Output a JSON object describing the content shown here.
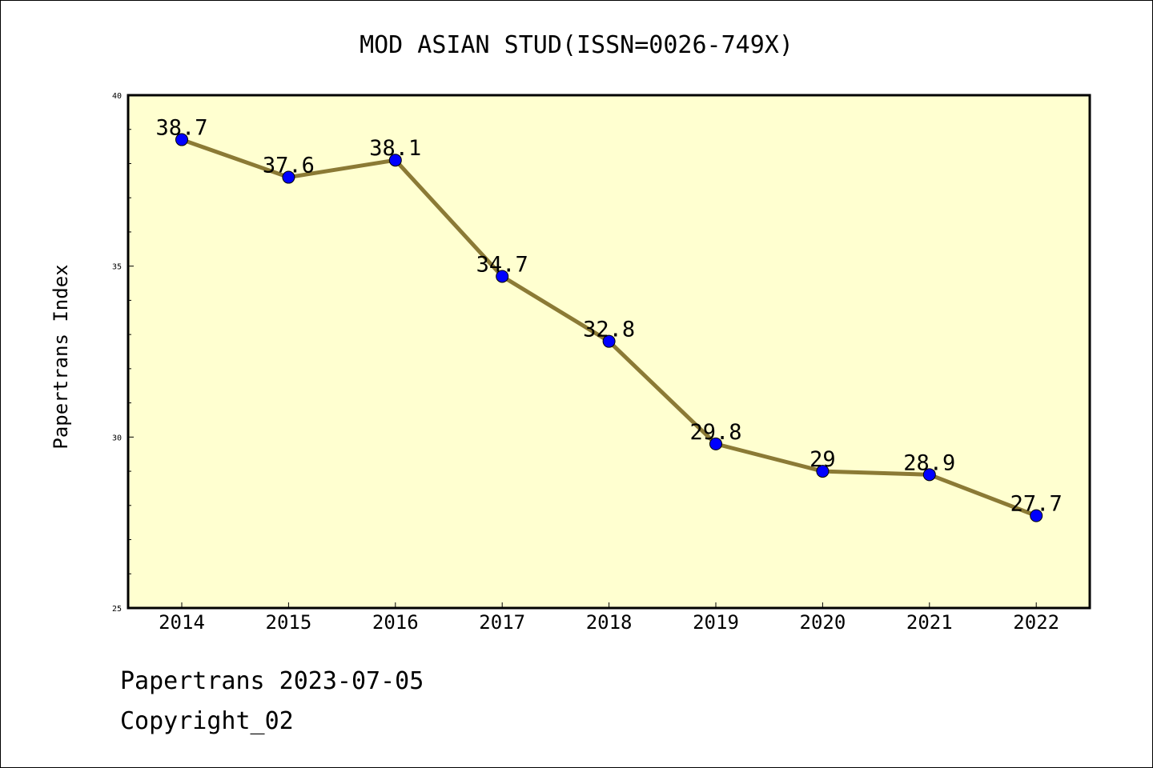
{
  "chart_data": {
    "type": "line",
    "title": "MOD ASIAN STUD(ISSN=0026-749X)",
    "xlabel": "",
    "ylabel": "Papertrans Index",
    "categories": [
      "2014",
      "2015",
      "2016",
      "2017",
      "2018",
      "2019",
      "2020",
      "2021",
      "2022"
    ],
    "series": [
      {
        "values": [
          38.7,
          37.6,
          38.1,
          34.7,
          32.8,
          29.8,
          29,
          28.9,
          27.7
        ],
        "labels": [
          "38.7",
          "37.6",
          "38.1",
          "34.7",
          "32.8",
          "29.8",
          "29",
          "28.9",
          "27.7"
        ]
      }
    ],
    "ylim": [
      25,
      40
    ],
    "yticks": [
      "25",
      "30",
      "35",
      "40"
    ],
    "grid": false,
    "legend": "none",
    "colors": {
      "plot_background": "#ffffd0",
      "line": "#8b7a35",
      "marker": "#0000ff"
    }
  },
  "footer": {
    "date_line": "Papertrans 2023-07-05",
    "copyright_line": "Copyright_02"
  }
}
